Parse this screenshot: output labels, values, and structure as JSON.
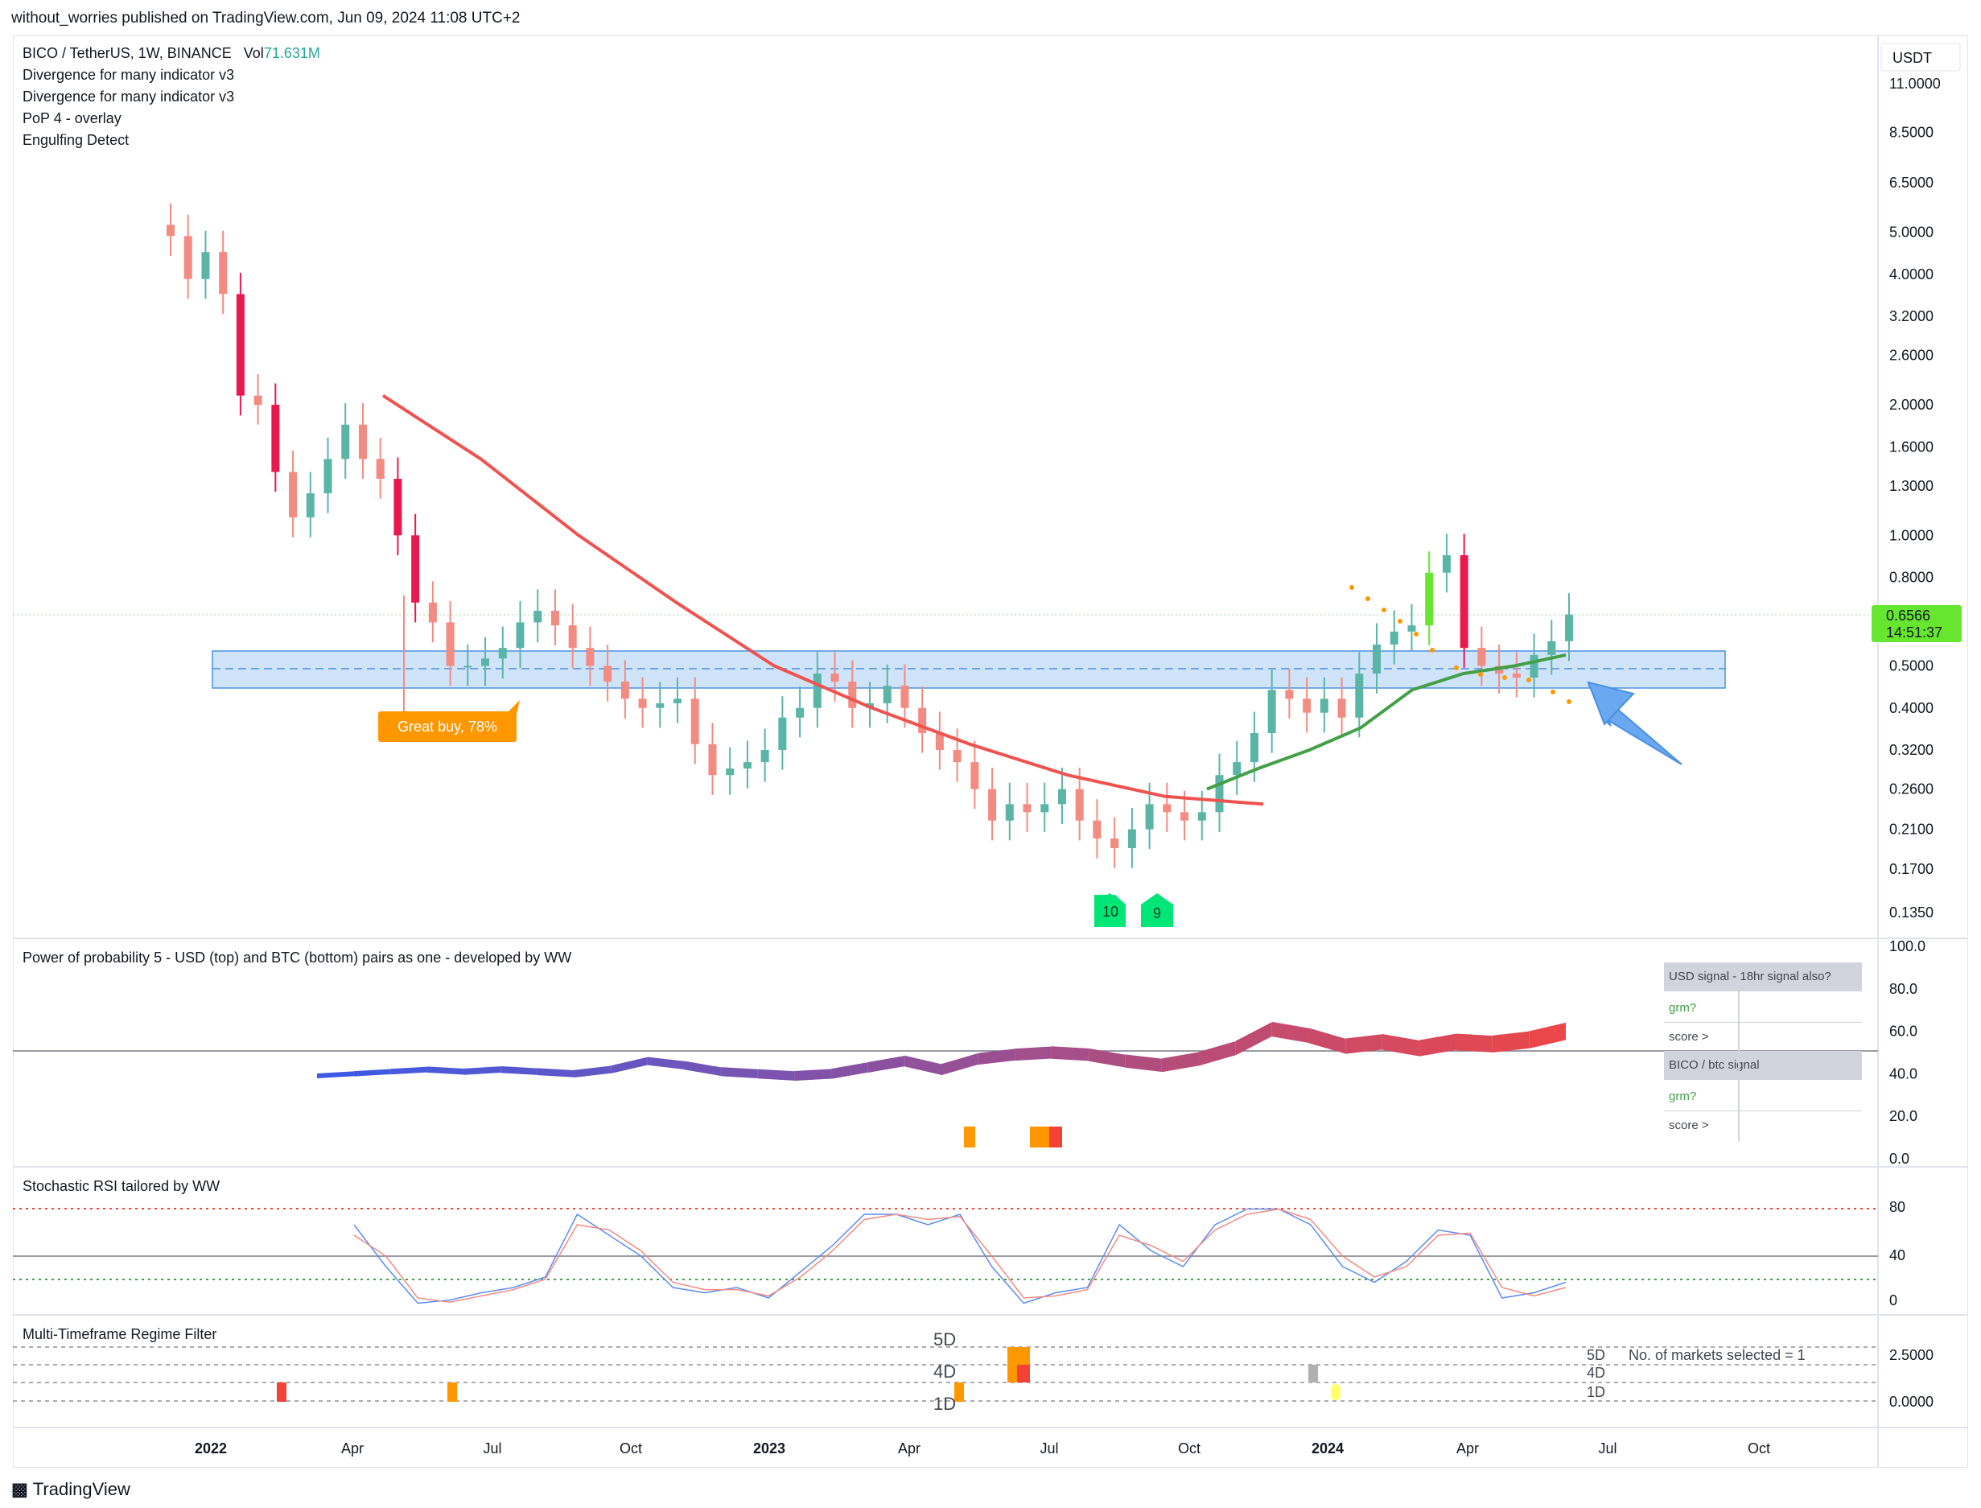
{
  "header": {
    "published": "without_worries published on TradingView.com, Jun 09, 2024 11:08 UTC+2"
  },
  "main_pane": {
    "symbol_line": "BICO / TetherUS, 1W, BINANCE",
    "volume_label": "Vol",
    "volume_value": "71.631M",
    "indicators": [
      "Divergence for many indicator v3",
      "Divergence for many indicator v3",
      "PoP 4 - overlay",
      "Engulfing Detect"
    ],
    "currency": "USDT",
    "price_ticks": [
      "11.0000",
      "8.5000",
      "6.5000",
      "5.0000",
      "4.0000",
      "3.2000",
      "2.6000",
      "2.0000",
      "1.6000",
      "1.3000",
      "1.0000",
      "0.8000",
      "0.5000",
      "0.4000",
      "0.3200",
      "0.2600",
      "0.2100",
      "0.1700",
      "0.1350"
    ],
    "last_price": "0.6566",
    "countdown": "14:51:37",
    "annotation_buy": "Great buy,  78%",
    "count_labels": [
      "10",
      "9"
    ],
    "colors": {
      "up": "#5bb5a7",
      "down": "#f28b82",
      "engulf_up": "#66e62e",
      "engulf_down": "#e8194f",
      "ma_red": "#ef5350",
      "ma_green": "#43a047",
      "zone": "#cfe3f9"
    }
  },
  "pop_pane": {
    "title": "Power of probability 5 - USD (top) and BTC (bottom) pairs as one - developed by WW",
    "axis_ticks": [
      "100.0",
      "80.0",
      "60.0",
      "40.0",
      "20.0",
      "0.0"
    ],
    "table": {
      "usd_header": "USD signal - 18hr signal also?",
      "usd_grm": "grm?",
      "usd_score": "score >",
      "btc_header": "BICO / btc signal",
      "btc_grm": "grm?",
      "btc_score": "score >"
    }
  },
  "rsi_pane": {
    "title": "Stochastic RSI tailored by WW",
    "axis_ticks": [
      "80",
      "40",
      "0"
    ]
  },
  "regime_pane": {
    "title": "Multi-Timeframe Regime Filter",
    "axis_ticks": [
      "2.5000",
      "0.0000"
    ],
    "left_labels": [
      "5D",
      "4D",
      "1D"
    ],
    "right_labels": [
      "5D",
      "4D",
      "1D"
    ],
    "markets_note": "No. of markets selected = 1"
  },
  "time_axis": [
    "2022",
    "Apr",
    "Jul",
    "Oct",
    "2023",
    "Apr",
    "Jul",
    "Oct",
    "2024",
    "Apr",
    "Jul",
    "Oct"
  ],
  "footer": {
    "brand": "TradingView"
  },
  "chart_data": [
    {
      "type": "candlestick",
      "title": "BICO / TetherUS, 1W, BINANCE",
      "y_scale": "log",
      "ylim": [
        0.12,
        12
      ],
      "x_range": [
        "2021-11",
        "2024-12"
      ],
      "series": [
        {
          "name": "BICO/USDT weekly",
          "close_approx": [
            4.9,
            3.9,
            4.5,
            3.6,
            2.1,
            2.0,
            1.4,
            1.1,
            1.25,
            1.5,
            1.8,
            1.5,
            1.35,
            1.0,
            0.7,
            0.63,
            0.5,
            0.5,
            0.52,
            0.55,
            0.63,
            0.67,
            0.62,
            0.55,
            0.5,
            0.46,
            0.42,
            0.4,
            0.41,
            0.42,
            0.33,
            0.28,
            0.29,
            0.3,
            0.32,
            0.38,
            0.4,
            0.48,
            0.46,
            0.4,
            0.41,
            0.45,
            0.4,
            0.35,
            0.32,
            0.3,
            0.26,
            0.22,
            0.24,
            0.23,
            0.24,
            0.26,
            0.22,
            0.2,
            0.19,
            0.21,
            0.24,
            0.23,
            0.22,
            0.23,
            0.28,
            0.3,
            0.35,
            0.44,
            0.42,
            0.39,
            0.42,
            0.38,
            0.48,
            0.56,
            0.6,
            0.62,
            0.82,
            0.9,
            0.55,
            0.5,
            0.48,
            0.47,
            0.53,
            0.57,
            0.6566
          ]
        },
        {
          "name": "Moving average (red)",
          "approx": [
            2.1,
            1.5,
            1.0,
            0.7,
            0.5,
            0.4,
            0.33,
            0.28,
            0.25,
            0.24
          ]
        },
        {
          "name": "Moving average (green)",
          "approx": [
            0.26,
            0.29,
            0.32,
            0.36,
            0.44,
            0.48,
            0.5,
            0.53
          ]
        }
      ],
      "zone": [
        0.44,
        0.56
      ]
    },
    {
      "type": "area",
      "title": "Power of probability 5",
      "ylim": [
        0,
        100
      ],
      "series": [
        {
          "name": "",
          "values": [
            39,
            40,
            41,
            42,
            41,
            42,
            41,
            40,
            42,
            46,
            44,
            41,
            40,
            39,
            40,
            43,
            46,
            42,
            47,
            49,
            50,
            49,
            46,
            44,
            47,
            52,
            61,
            58,
            53,
            55,
            52,
            55,
            54,
            56,
            60
          ]
        }
      ]
    },
    {
      "type": "line",
      "title": "Stochastic RSI tailored by WW",
      "ylim": [
        0,
        100
      ],
      "series": [
        {
          "name": "K",
          "values": [
            80,
            40,
            5,
            8,
            15,
            20,
            30,
            90,
            70,
            50,
            20,
            15,
            20,
            10,
            35,
            60,
            90,
            90,
            80,
            90,
            40,
            5,
            15,
            20,
            80,
            55,
            40,
            80,
            95,
            95,
            80,
            40,
            25,
            45,
            75,
            70,
            10,
            15,
            25
          ]
        },
        {
          "name": "D",
          "values": [
            70,
            50,
            10,
            6,
            12,
            18,
            28,
            80,
            75,
            55,
            25,
            18,
            18,
            12,
            30,
            55,
            85,
            90,
            85,
            88,
            50,
            10,
            12,
            18,
            70,
            60,
            45,
            75,
            90,
            95,
            85,
            50,
            30,
            40,
            70,
            72,
            20,
            12,
            20
          ]
        }
      ]
    }
  ]
}
